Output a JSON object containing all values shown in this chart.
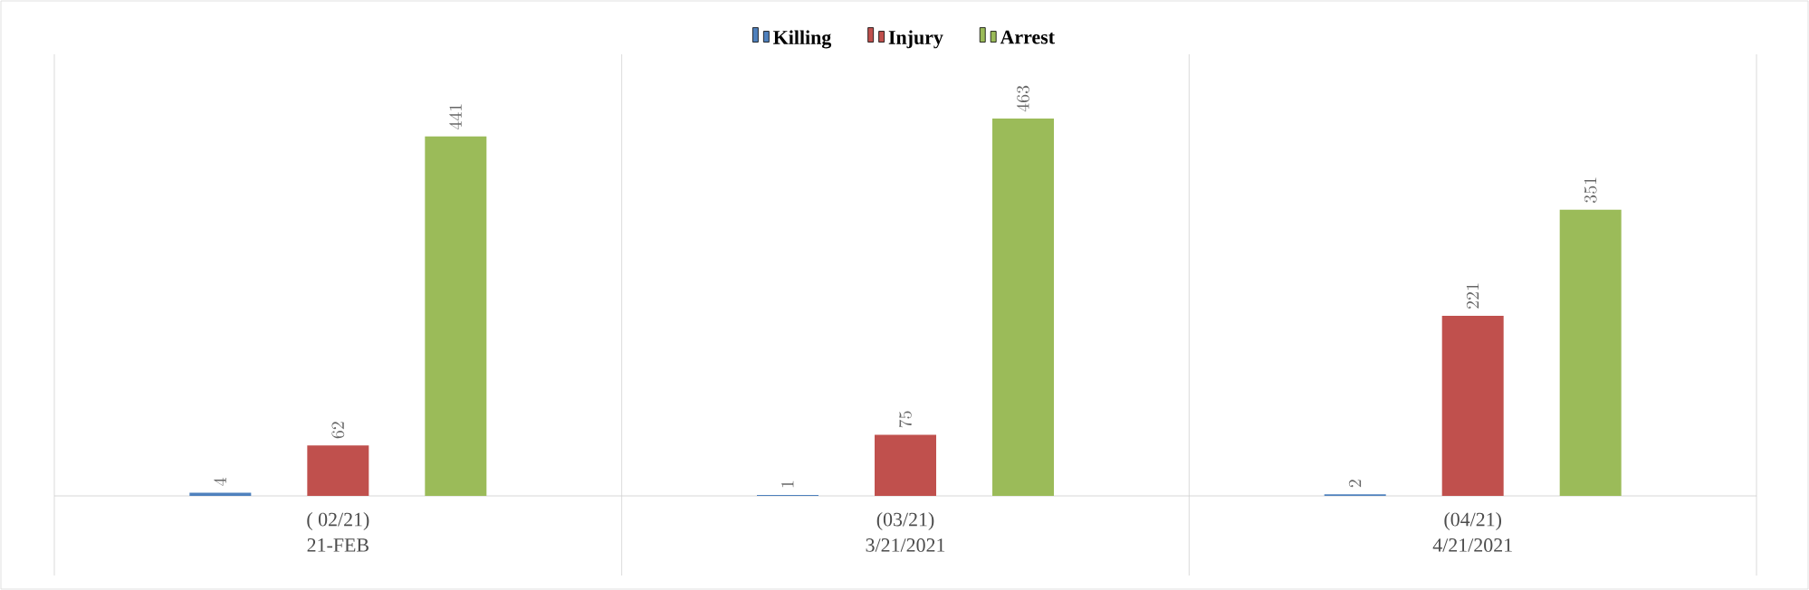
{
  "chart_data": {
    "type": "bar",
    "categories": [
      "21-FEB",
      "3/21/2021",
      "4/21/2021"
    ],
    "series": [
      {
        "name": "Killing",
        "color": "#4f81bd",
        "values": [
          4,
          1,
          2
        ]
      },
      {
        "name": "Injury",
        "color": "#c0504d",
        "values": [
          62,
          75,
          221
        ]
      },
      {
        "name": "Arrest",
        "color": "#9bbb59",
        "values": [
          441,
          463,
          351
        ]
      }
    ],
    "annotations": [
      "( 02/21)",
      "(03/21)",
      "(04/21)"
    ],
    "data_labels": true,
    "legend": "top",
    "grid": "x"
  }
}
